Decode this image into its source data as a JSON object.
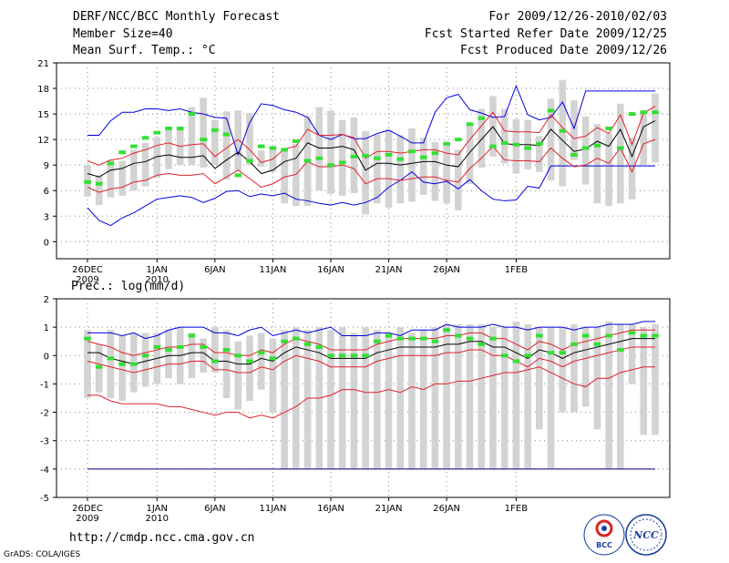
{
  "header": {
    "title": "DERF/NCC/BCC Monthly Forecast",
    "member_size": "Member Size=40",
    "variable": "Mean Surf. Temp.: °C",
    "for_range": "For 2009/12/26-2010/02/03",
    "started": "Fcst Started Refer Date 2009/12/25",
    "produced": "Fcst Produced Date 2009/12/26"
  },
  "precip_label": "Prec.: log(mm/d)",
  "footer": {
    "url": "http://cmdp.ncc.cma.gov.cn",
    "credit": "GrADS: COLA/IGES",
    "logo1": "BCC",
    "logo2": "NCC"
  },
  "colors": {
    "box": "#d3d3d3",
    "green": "#33e033",
    "red": "#e0202a",
    "blue": "#0000e0",
    "mean": "#000000",
    "clim": "#000080"
  },
  "chart_data": [
    {
      "type": "box",
      "title": "Mean Surf. Temp.: °C",
      "ylim": [
        -2,
        21
      ],
      "yticks": [
        0,
        3,
        6,
        9,
        12,
        15,
        18,
        21
      ],
      "xtick_labels": [
        [
          "26DEC",
          "2009"
        ],
        [
          "1JAN",
          "2010"
        ],
        [
          "6JAN",
          ""
        ],
        [
          "11JAN",
          ""
        ],
        [
          "16JAN",
          ""
        ],
        [
          "21JAN",
          ""
        ],
        [
          "26JAN",
          ""
        ],
        [
          "1FEB",
          ""
        ]
      ],
      "box_low": [
        5.3,
        4.3,
        5.2,
        5.4,
        6.0,
        6.5,
        7.5,
        8.5,
        9.0,
        9.0,
        8.7,
        9.0,
        7.3,
        8.3,
        9.0,
        8.8,
        8.2,
        4.5,
        4.2,
        4.2,
        6.0,
        5.6,
        5.4,
        5.7,
        3.2,
        4.5,
        4.0,
        4.5,
        4.7,
        5.5,
        4.8,
        4.5,
        3.7,
        6.8,
        8.7,
        10.0,
        9.2,
        8.0,
        8.5,
        8.2,
        7.2,
        6.5,
        9.6,
        6.7,
        4.5,
        4.2,
        4.5,
        5.0,
        9.0,
        9.3
      ],
      "box_high": [
        9.0,
        7.8,
        9.6,
        9.5,
        10.8,
        11.6,
        12.3,
        13.1,
        13.4,
        15.8,
        16.9,
        14.3,
        15.3,
        15.4,
        15.1,
        10.7,
        10.8,
        10.6,
        11.5,
        14.7,
        15.8,
        15.4,
        14.3,
        14.6,
        13.0,
        12.6,
        13.1,
        12.5,
        13.3,
        12.2,
        11.7,
        11.7,
        10.8,
        13.6,
        15.6,
        17.1,
        15.6,
        14.4,
        14.3,
        12.4,
        16.8,
        19.0,
        16.6,
        14.7,
        13.8,
        12.7,
        16.2,
        12.2,
        15.4,
        17.4
      ],
      "green": [
        7.0,
        6.8,
        9.2,
        10.5,
        11.2,
        12.2,
        12.8,
        13.3,
        13.3,
        15.0,
        12.0,
        13.1,
        12.6,
        7.8,
        9.5,
        11.2,
        11.0,
        10.8,
        11.8,
        9.5,
        9.8,
        9.0,
        9.3,
        10.0,
        10.1,
        9.8,
        10.2,
        9.7,
        10.6,
        9.9,
        10.4,
        11.5,
        12.0,
        13.8,
        14.5,
        11.2,
        11.6,
        11.4,
        11.0,
        11.5,
        15.4,
        13.0,
        10.2,
        11.0,
        11.3,
        13.3,
        11.0,
        15.0,
        15.2,
        15.2
      ],
      "mean": [
        8.0,
        7.6,
        8.4,
        8.6,
        9.2,
        9.4,
        10.0,
        10.2,
        9.9,
        9.9,
        10.1,
        8.6,
        9.6,
        10.5,
        9.4,
        8.0,
        8.4,
        9.4,
        9.8,
        11.6,
        11.0,
        11.0,
        11.2,
        10.8,
        8.4,
        9.2,
        9.2,
        9.0,
        9.2,
        9.4,
        9.4,
        9.0,
        8.8,
        10.5,
        12.0,
        13.5,
        11.5,
        11.4,
        11.4,
        11.3,
        13.2,
        11.9,
        10.6,
        10.9,
        11.8,
        11.2,
        13.2,
        10.0,
        13.5,
        14.2
      ],
      "red_upper": [
        9.5,
        9.0,
        9.6,
        9.8,
        10.4,
        10.8,
        11.3,
        11.6,
        11.2,
        11.4,
        11.5,
        10.0,
        11.0,
        12.0,
        10.8,
        9.3,
        9.7,
        10.9,
        11.2,
        13.2,
        12.5,
        12.5,
        12.6,
        12.2,
        9.8,
        10.6,
        10.6,
        10.4,
        10.6,
        10.8,
        10.8,
        10.4,
        10.2,
        12.0,
        13.6,
        15.2,
        13.0,
        12.9,
        12.9,
        12.8,
        14.9,
        13.4,
        12.1,
        12.4,
        13.4,
        12.7,
        14.9,
        11.4,
        15.1,
        15.9
      ],
      "red_lower": [
        6.4,
        5.8,
        6.2,
        6.4,
        7.0,
        7.2,
        7.8,
        8.0,
        7.8,
        7.8,
        8.0,
        6.8,
        7.6,
        8.4,
        7.4,
        6.4,
        6.8,
        7.6,
        7.9,
        9.4,
        8.8,
        8.8,
        9.0,
        8.6,
        6.8,
        7.4,
        7.4,
        7.2,
        7.4,
        7.6,
        7.6,
        7.2,
        7.0,
        8.6,
        9.8,
        11.2,
        9.6,
        9.5,
        9.5,
        9.4,
        11.0,
        9.8,
        8.8,
        9.0,
        9.8,
        9.2,
        11.0,
        8.2,
        11.5,
        12.0
      ],
      "blue_upper": [
        12.5,
        12.5,
        14.2,
        15.2,
        15.2,
        15.6,
        15.6,
        15.4,
        15.6,
        15.2,
        15.0,
        14.6,
        14.5,
        10.2,
        14.0,
        16.2,
        16.0,
        15.5,
        15.2,
        14.6,
        12.5,
        12.0,
        12.6,
        12.1,
        12.1,
        12.7,
        13.1,
        12.4,
        11.6,
        11.6,
        15.2,
        16.9,
        17.3,
        15.5,
        15.1,
        14.6,
        14.7,
        18.3,
        14.9,
        14.3,
        14.6,
        16.4,
        13.3,
        17.7,
        17.7,
        17.7,
        17.7,
        17.7,
        17.7,
        17.7
      ],
      "blue_lower": [
        4.0,
        2.5,
        1.9,
        2.8,
        3.4,
        4.2,
        5.0,
        5.2,
        5.4,
        5.2,
        4.6,
        5.1,
        5.9,
        6.0,
        5.3,
        5.6,
        5.4,
        5.7,
        5.0,
        4.8,
        4.5,
        4.3,
        4.6,
        4.3,
        4.6,
        5.2,
        6.4,
        7.2,
        8.2,
        7.0,
        6.8,
        7.1,
        6.2,
        7.3,
        6.0,
        5.0,
        4.8,
        4.9,
        6.5,
        6.3,
        8.9,
        8.9,
        8.9,
        8.9,
        8.9,
        8.9,
        8.9,
        8.9,
        8.9,
        8.9
      ]
    },
    {
      "type": "box",
      "title": "Prec.: log(mm/d)",
      "ylim": [
        -5,
        2
      ],
      "yticks": [
        -5,
        -4,
        -3,
        -2,
        -1,
        0,
        1,
        2
      ],
      "xtick_labels": [
        [
          "26DEC",
          "2009"
        ],
        [
          "1JAN",
          "2010"
        ],
        [
          "6JAN",
          ""
        ],
        [
          "11JAN",
          ""
        ],
        [
          "16JAN",
          ""
        ],
        [
          "21JAN",
          ""
        ],
        [
          "26JAN",
          ""
        ],
        [
          "1FEB",
          ""
        ]
      ],
      "box_low": [
        -1.5,
        -1.3,
        -1.5,
        -1.6,
        -1.3,
        -1.1,
        -1.0,
        -0.8,
        -1.0,
        -0.8,
        -0.6,
        -0.6,
        -1.5,
        -1.9,
        -1.6,
        -1.2,
        -2.0,
        -4.0,
        -4.0,
        -4.0,
        -4.0,
        -4.0,
        -4.0,
        -4.0,
        -4.0,
        -4.0,
        -4.0,
        -4.0,
        -4.0,
        -4.0,
        -4.0,
        -4.0,
        -4.0,
        -4.0,
        -4.0,
        -4.0,
        -4.0,
        -4.0,
        -4.0,
        -2.6,
        -4.0,
        -2.0,
        -2.0,
        -1.8,
        -2.6,
        -4.0,
        -4.0,
        -1.0,
        -2.8,
        -2.8
      ],
      "box_high": [
        0.9,
        0.4,
        0.9,
        0.7,
        0.8,
        0.8,
        0.8,
        0.9,
        1.0,
        0.8,
        0.6,
        1.0,
        0.9,
        0.5,
        0.7,
        0.8,
        0.6,
        0.9,
        1.0,
        0.9,
        1.0,
        0.9,
        1.0,
        0.8,
        1.0,
        0.9,
        0.8,
        1.0,
        0.8,
        0.9,
        1.0,
        1.1,
        1.1,
        1.1,
        1.1,
        1.0,
        1.0,
        1.2,
        1.1,
        1.0,
        1.0,
        1.0,
        1.1,
        1.0,
        1.0,
        1.2,
        1.1,
        1.1,
        1.0,
        1.1
      ],
      "green": [
        0.6,
        -0.4,
        -0.1,
        -0.3,
        -0.3,
        0.0,
        0.3,
        0.2,
        0.3,
        0.7,
        0.3,
        -0.2,
        0.2,
        0.0,
        -0.2,
        0.1,
        -0.1,
        0.5,
        0.6,
        0.4,
        0.3,
        0.0,
        0.0,
        0.0,
        0.0,
        0.5,
        0.7,
        0.6,
        0.6,
        0.6,
        0.5,
        0.9,
        0.7,
        0.6,
        0.4,
        0.6,
        0.0,
        -0.2,
        0.0,
        0.7,
        0.1,
        0.1,
        0.4,
        0.7,
        0.4,
        0.7,
        0.2,
        0.8,
        0.7,
        0.7
      ],
      "mean": [
        0.1,
        0.1,
        -0.1,
        -0.2,
        -0.3,
        -0.2,
        -0.1,
        0.0,
        0.0,
        0.1,
        0.1,
        -0.2,
        -0.2,
        -0.3,
        -0.3,
        -0.1,
        -0.2,
        0.1,
        0.3,
        0.2,
        0.1,
        -0.1,
        -0.1,
        -0.1,
        -0.1,
        0.1,
        0.2,
        0.3,
        0.3,
        0.3,
        0.3,
        0.4,
        0.4,
        0.5,
        0.5,
        0.3,
        0.3,
        0.1,
        -0.1,
        0.2,
        0.1,
        -0.1,
        0.1,
        0.2,
        0.3,
        0.4,
        0.5,
        0.6,
        0.6,
        0.6
      ],
      "red_upper": [
        0.5,
        0.4,
        0.3,
        0.1,
        0.0,
        0.1,
        0.2,
        0.3,
        0.3,
        0.4,
        0.4,
        0.1,
        0.1,
        0.0,
        0.0,
        0.2,
        0.1,
        0.4,
        0.6,
        0.5,
        0.4,
        0.2,
        0.2,
        0.2,
        0.2,
        0.4,
        0.5,
        0.6,
        0.6,
        0.6,
        0.6,
        0.7,
        0.7,
        0.8,
        0.8,
        0.6,
        0.6,
        0.4,
        0.2,
        0.5,
        0.4,
        0.2,
        0.4,
        0.5,
        0.6,
        0.7,
        0.8,
        0.9,
        0.9,
        0.9
      ],
      "red_lower": [
        -0.2,
        -0.3,
        -0.4,
        -0.5,
        -0.6,
        -0.5,
        -0.4,
        -0.3,
        -0.3,
        -0.2,
        -0.2,
        -0.5,
        -0.5,
        -0.6,
        -0.6,
        -0.4,
        -0.5,
        -0.2,
        0.0,
        -0.1,
        -0.2,
        -0.4,
        -0.4,
        -0.4,
        -0.4,
        -0.2,
        -0.1,
        0.0,
        0.0,
        0.0,
        0.0,
        0.1,
        0.1,
        0.2,
        0.2,
        0.0,
        0.0,
        -0.2,
        -0.4,
        -0.1,
        -0.2,
        -0.4,
        -0.2,
        -0.1,
        0.0,
        0.1,
        0.2,
        0.3,
        0.3,
        0.3
      ],
      "red_low": [
        -1.4,
        -1.4,
        -1.6,
        -1.7,
        -1.7,
        -1.7,
        -1.7,
        -1.8,
        -1.8,
        -1.9,
        -2.0,
        -2.1,
        -2.0,
        -2.0,
        -2.2,
        -2.1,
        -2.2,
        -2.0,
        -1.8,
        -1.5,
        -1.5,
        -1.4,
        -1.2,
        -1.2,
        -1.3,
        -1.3,
        -1.2,
        -1.3,
        -1.1,
        -1.2,
        -1.0,
        -1.0,
        -0.9,
        -0.9,
        -0.8,
        -0.7,
        -0.6,
        -0.6,
        -0.5,
        -0.4,
        -0.6,
        -0.8,
        -1.0,
        -1.1,
        -0.8,
        -0.8,
        -0.6,
        -0.5,
        -0.4,
        -0.4
      ],
      "blue_upper": [
        0.8,
        0.8,
        0.8,
        0.7,
        0.8,
        0.6,
        0.7,
        0.9,
        1.0,
        1.0,
        1.0,
        0.8,
        0.8,
        0.7,
        0.9,
        1.0,
        0.7,
        0.8,
        0.9,
        0.8,
        0.9,
        1.0,
        0.7,
        0.7,
        0.7,
        0.8,
        0.8,
        0.7,
        0.9,
        0.9,
        0.9,
        1.1,
        1.0,
        1.0,
        1.0,
        1.1,
        1.0,
        1.0,
        0.9,
        1.0,
        1.0,
        1.0,
        0.9,
        1.0,
        1.0,
        1.1,
        1.1,
        1.1,
        1.2,
        1.2
      ],
      "clim_line": -4.0
    }
  ]
}
